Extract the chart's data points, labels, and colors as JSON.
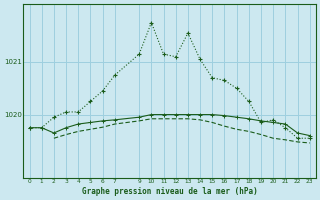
{
  "title": "Graphe pression niveau de la mer (hPa)",
  "bg_color": "#cce8f0",
  "grid_color": "#9ecfdf",
  "line_color": "#1a5c1a",
  "x_ticks": [
    0,
    1,
    2,
    3,
    4,
    5,
    6,
    7,
    9,
    10,
    11,
    12,
    13,
    14,
    15,
    16,
    17,
    18,
    19,
    20,
    21,
    22,
    23
  ],
  "xlim": [
    -0.5,
    23.5
  ],
  "ylim": [
    1018.8,
    1022.1
  ],
  "yticks": [
    1020,
    1021
  ],
  "series1_x": [
    0,
    1,
    2,
    3,
    4,
    5,
    6,
    7,
    9,
    10,
    11,
    12,
    13,
    14,
    15,
    16,
    17,
    18,
    19,
    20,
    21,
    22,
    23
  ],
  "series1_y": [
    1019.75,
    1019.75,
    1019.95,
    1020.05,
    1020.05,
    1020.25,
    1020.45,
    1020.75,
    1021.15,
    1021.75,
    1021.15,
    1021.1,
    1021.55,
    1021.05,
    1020.7,
    1020.65,
    1020.5,
    1020.25,
    1019.85,
    1019.9,
    1019.75,
    1019.55,
    1019.55
  ],
  "series2_x": [
    0,
    1,
    2,
    3,
    4,
    5,
    6,
    7,
    9,
    10,
    11,
    12,
    13,
    14,
    15,
    16,
    17,
    18,
    19,
    20,
    21,
    22,
    23
  ],
  "series2_y": [
    1019.75,
    1019.75,
    1019.65,
    1019.75,
    1019.82,
    1019.85,
    1019.88,
    1019.9,
    1019.95,
    1020.0,
    1020.0,
    1020.0,
    1020.0,
    1020.0,
    1020.0,
    1019.98,
    1019.95,
    1019.92,
    1019.88,
    1019.85,
    1019.82,
    1019.65,
    1019.6
  ],
  "series3_x": [
    2,
    3,
    4,
    5,
    6,
    7,
    9,
    10,
    11,
    12,
    13,
    14,
    15,
    16,
    17,
    18,
    19,
    20,
    21,
    22,
    23
  ],
  "series3_y": [
    1019.55,
    1019.62,
    1019.68,
    1019.72,
    1019.76,
    1019.82,
    1019.88,
    1019.92,
    1019.92,
    1019.92,
    1019.92,
    1019.9,
    1019.85,
    1019.78,
    1019.72,
    1019.68,
    1019.62,
    1019.55,
    1019.52,
    1019.48,
    1019.46
  ]
}
